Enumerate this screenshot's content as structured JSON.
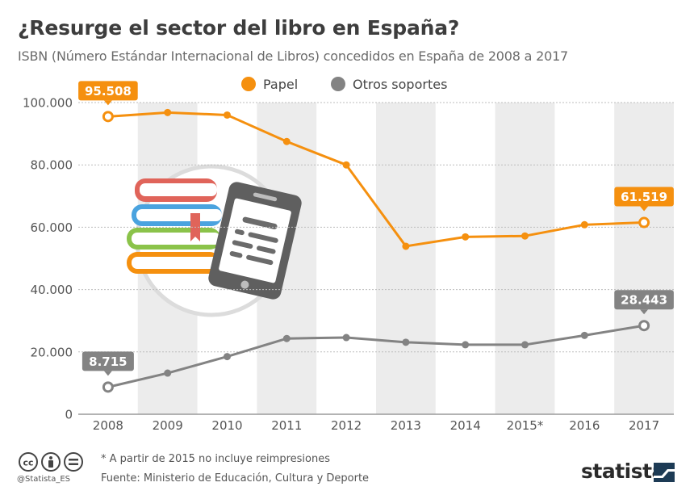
{
  "header": {
    "title": "¿Resurge el sector del libro en España?",
    "subtitle": "ISBN (Número Estándar Internacional de Libros) concedidos en España de 2008 a 2017"
  },
  "chart_data": {
    "type": "line",
    "x": [
      "2008",
      "2009",
      "2010",
      "2011",
      "2012",
      "2013",
      "2014",
      "2015*",
      "2016",
      "2017"
    ],
    "series": [
      {
        "name": "Papel",
        "color": "#f5900f",
        "values": [
          95508,
          96800,
          96000,
          87500,
          80000,
          53900,
          56900,
          57200,
          60800,
          61519
        ]
      },
      {
        "name": "Otros soportes",
        "color": "#838383",
        "values": [
          8715,
          13200,
          18500,
          24300,
          24600,
          23100,
          22300,
          22300,
          25300,
          28443
        ]
      }
    ],
    "y_ticks": [
      "0",
      "20.000",
      "40.000",
      "60.000",
      "80.000",
      "100.000"
    ],
    "ylim": [
      0,
      100000
    ],
    "data_labels": [
      {
        "series": 0,
        "index": 0,
        "text": "95.508"
      },
      {
        "series": 0,
        "index": 9,
        "text": "61.519"
      },
      {
        "series": 1,
        "index": 0,
        "text": "8.715"
      },
      {
        "series": 1,
        "index": 9,
        "text": "28.443"
      }
    ],
    "legend": {
      "position": "top-center"
    },
    "grid": "alternating-columns"
  },
  "footer": {
    "note": "* A partir de 2015 no incluye reimpresiones",
    "source": "Fuente: Ministerio de Educación, Cultura y Deporte",
    "handle": "@Statista_ES",
    "brand": "statista"
  }
}
